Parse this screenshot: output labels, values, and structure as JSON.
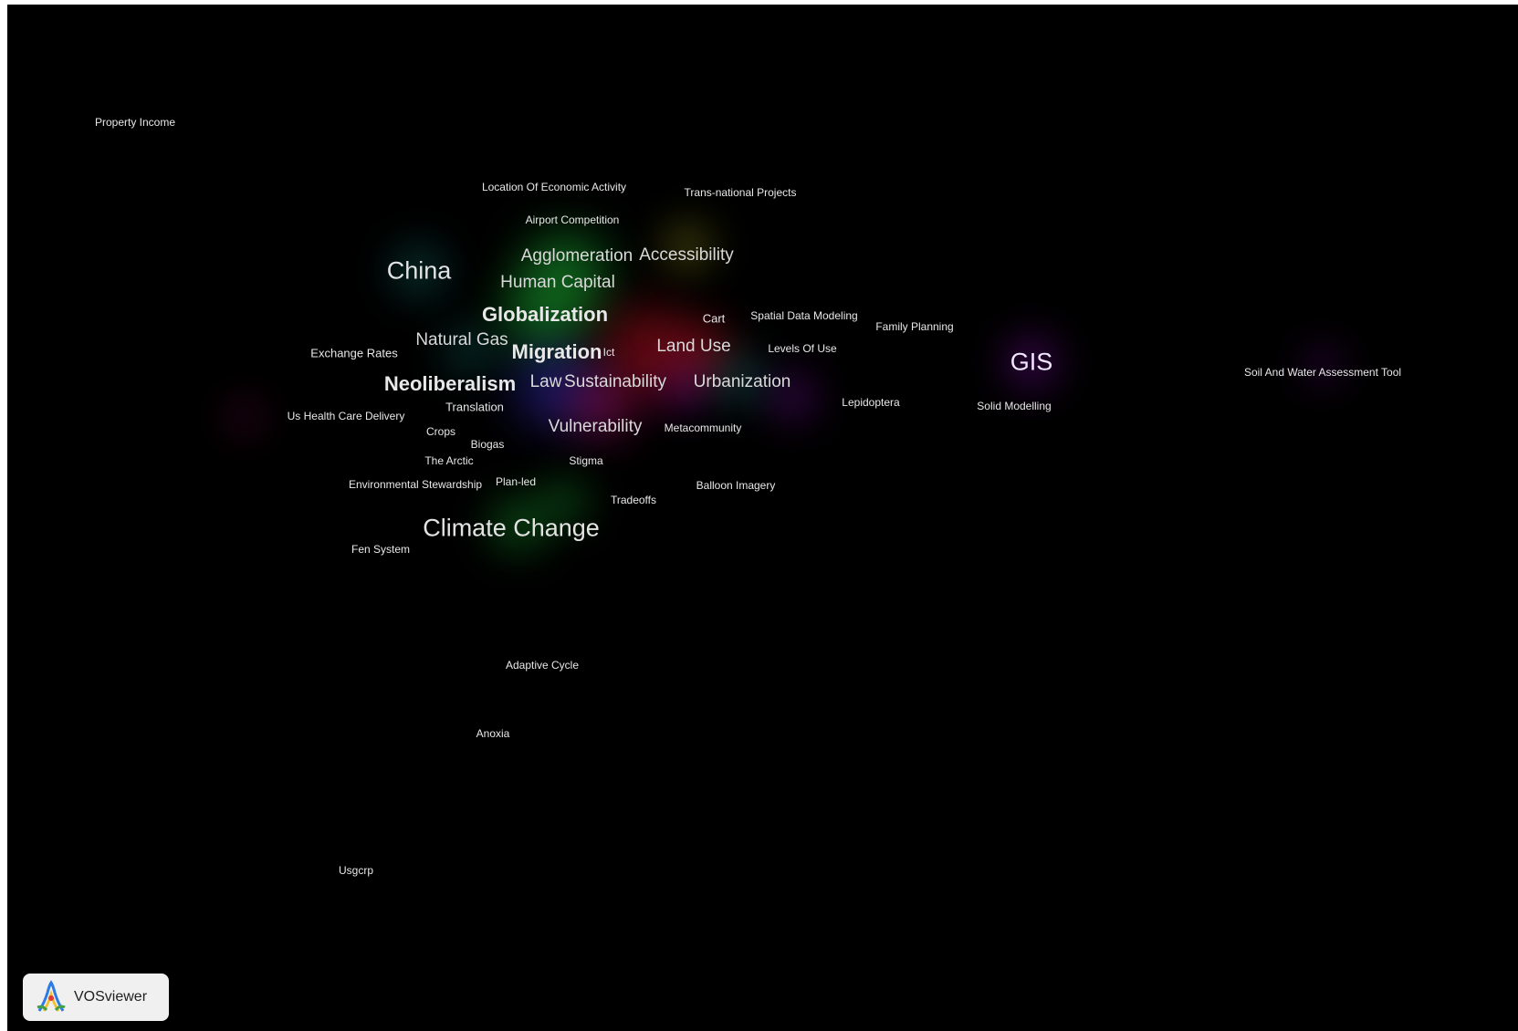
{
  "app": {
    "logo_label": "VOSviewer"
  },
  "glow_colors": {
    "green": "#1fc33a",
    "red": "#e8192a",
    "blue": "#3a36e0",
    "teal": "#1a8f8a",
    "purple": "#a014d6",
    "magenta": "#d0147a",
    "yellow": "#c6c62a"
  },
  "terms": [
    {
      "label": "Property Income",
      "weight": "xs"
    },
    {
      "label": "Location Of Economic Activity",
      "weight": "xs"
    },
    {
      "label": "Trans-national Projects",
      "weight": "xs"
    },
    {
      "label": "Airport Competition",
      "weight": "xs"
    },
    {
      "label": "Agglomeration",
      "weight": "md"
    },
    {
      "label": "Accessibility",
      "weight": "md"
    },
    {
      "label": "China",
      "weight": "xl"
    },
    {
      "label": "Human Capital",
      "weight": "md"
    },
    {
      "label": "Globalization",
      "weight": "lg"
    },
    {
      "label": "Cart",
      "weight": "sm"
    },
    {
      "label": "Spatial Data Modeling",
      "weight": "xs"
    },
    {
      "label": "Family Planning",
      "weight": "xs"
    },
    {
      "label": "Natural Gas",
      "weight": "md"
    },
    {
      "label": "Exchange Rates",
      "weight": "sm"
    },
    {
      "label": "Migration",
      "weight": "lg"
    },
    {
      "label": "Ict",
      "weight": "xs"
    },
    {
      "label": "Land Use",
      "weight": "md"
    },
    {
      "label": "Levels Of Use",
      "weight": "xs"
    },
    {
      "label": "GIS",
      "weight": "gis"
    },
    {
      "label": "Soil And Water Assessment Tool",
      "weight": "xs"
    },
    {
      "label": "Neoliberalism",
      "weight": "lg"
    },
    {
      "label": "Law",
      "weight": "md"
    },
    {
      "label": "Sustainability",
      "weight": "md"
    },
    {
      "label": "Urbanization",
      "weight": "md"
    },
    {
      "label": "Translation",
      "weight": "sm"
    },
    {
      "label": "Lepidoptera",
      "weight": "xs"
    },
    {
      "label": "Solid Modelling",
      "weight": "xs"
    },
    {
      "label": "Us Health Care Delivery",
      "weight": "xs"
    },
    {
      "label": "Crops",
      "weight": "xs"
    },
    {
      "label": "Vulnerability",
      "weight": "md"
    },
    {
      "label": "Metacommunity",
      "weight": "xs"
    },
    {
      "label": "Biogas",
      "weight": "xs"
    },
    {
      "label": "The Arctic",
      "weight": "xs"
    },
    {
      "label": "Stigma",
      "weight": "xs"
    },
    {
      "label": "Environmental Stewardship",
      "weight": "xs"
    },
    {
      "label": "Plan-led",
      "weight": "xs"
    },
    {
      "label": "Balloon Imagery",
      "weight": "xs"
    },
    {
      "label": "Tradeoffs",
      "weight": "xs"
    },
    {
      "label": "Climate Change",
      "weight": "xl"
    },
    {
      "label": "Fen System",
      "weight": "xs"
    },
    {
      "label": "Adaptive Cycle",
      "weight": "xs"
    },
    {
      "label": "Anoxia",
      "weight": "xs"
    },
    {
      "label": "Usgcrp",
      "weight": "xs"
    }
  ]
}
